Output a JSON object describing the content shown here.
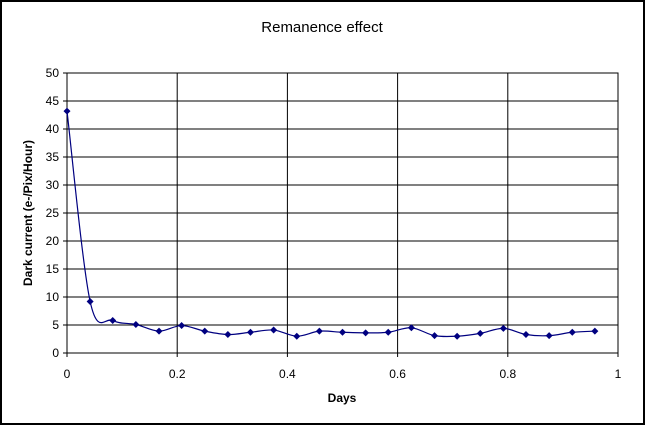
{
  "chart_data": {
    "type": "line",
    "title": "Remanence effect",
    "xlabel": "Days",
    "ylabel": "Dark current (e-/Pix/Hour)",
    "xlim": [
      0,
      1
    ],
    "ylim": [
      0,
      50
    ],
    "xticks": [
      "0",
      "0.2",
      "0.4",
      "0.6",
      "0.8",
      "1"
    ],
    "yticks": [
      "0",
      "5",
      "10",
      "15",
      "20",
      "25",
      "30",
      "35",
      "40",
      "45",
      "50"
    ],
    "grid": "major gridlines on both axes",
    "legend": "none",
    "marker": "diamond",
    "colors": {
      "line": "#000080",
      "marker": "#000080",
      "grid": "#000000",
      "plot_background": "#ffffff",
      "border": "#000000"
    },
    "series": [
      {
        "x": [
          0.0,
          0.042,
          0.083,
          0.125,
          0.167,
          0.208,
          0.25,
          0.292,
          0.333,
          0.375,
          0.417,
          0.458,
          0.5,
          0.542,
          0.583,
          0.625,
          0.667,
          0.708,
          0.75,
          0.792,
          0.833,
          0.875,
          0.917,
          0.958
        ],
        "values": [
          43.2,
          9.2,
          5.8,
          5.1,
          3.9,
          4.9,
          3.9,
          3.3,
          3.7,
          4.1,
          3.0,
          3.9,
          3.7,
          3.6,
          3.7,
          4.5,
          3.1,
          3.0,
          3.5,
          4.4,
          3.3,
          3.1,
          3.7,
          3.9
        ]
      }
    ]
  }
}
